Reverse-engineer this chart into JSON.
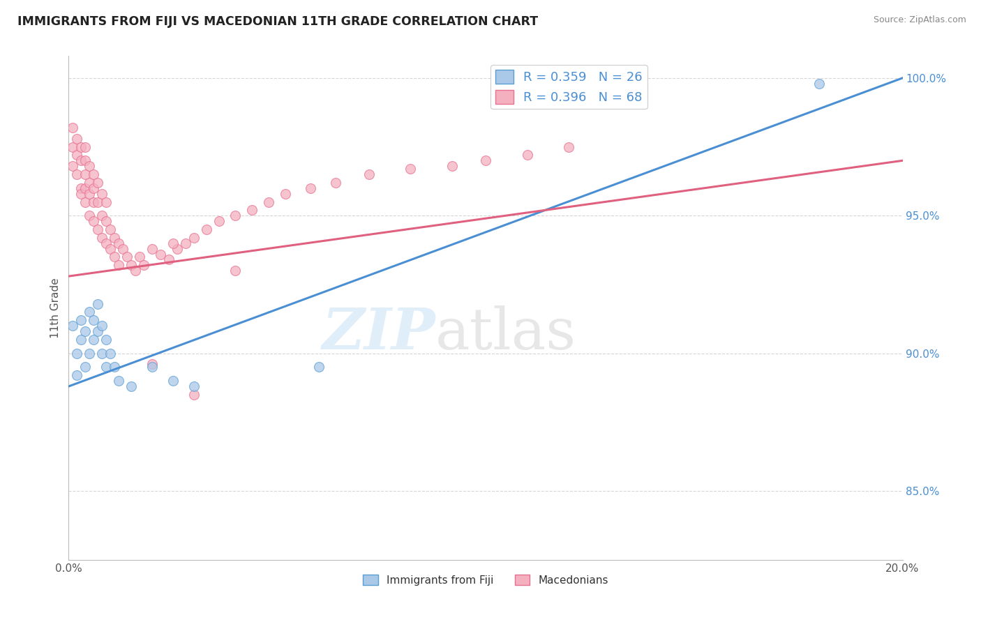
{
  "title": "IMMIGRANTS FROM FIJI VS MACEDONIAN 11TH GRADE CORRELATION CHART",
  "source": "Source: ZipAtlas.com",
  "ylabel": "11th Grade",
  "xlim": [
    0.0,
    0.2
  ],
  "ylim": [
    0.825,
    1.008
  ],
  "fiji_R": 0.359,
  "fiji_N": 26,
  "mac_R": 0.396,
  "mac_N": 68,
  "fiji_color": "#aac8e8",
  "mac_color": "#f4b0bf",
  "fiji_edge_color": "#5a9fd4",
  "mac_edge_color": "#e87090",
  "fiji_line_color": "#4a8fd4",
  "mac_line_color": "#e06080",
  "background_color": "#ffffff",
  "fiji_line_x": [
    0.0,
    0.2
  ],
  "fiji_line_y": [
    0.888,
    1.0
  ],
  "mac_line_x": [
    0.0,
    0.2
  ],
  "mac_line_y": [
    0.928,
    0.97
  ],
  "fiji_scatter_x": [
    0.001,
    0.002,
    0.002,
    0.003,
    0.003,
    0.004,
    0.004,
    0.005,
    0.005,
    0.006,
    0.006,
    0.007,
    0.007,
    0.008,
    0.008,
    0.009,
    0.009,
    0.01,
    0.011,
    0.012,
    0.015,
    0.02,
    0.025,
    0.03,
    0.06,
    0.18
  ],
  "fiji_scatter_y": [
    0.91,
    0.9,
    0.892,
    0.905,
    0.912,
    0.895,
    0.908,
    0.9,
    0.915,
    0.905,
    0.912,
    0.908,
    0.918,
    0.9,
    0.91,
    0.895,
    0.905,
    0.9,
    0.895,
    0.89,
    0.888,
    0.895,
    0.89,
    0.888,
    0.895,
    0.998
  ],
  "fiji_dot_size": 100,
  "mac_scatter_x": [
    0.001,
    0.001,
    0.001,
    0.002,
    0.002,
    0.002,
    0.003,
    0.003,
    0.003,
    0.003,
    0.004,
    0.004,
    0.004,
    0.004,
    0.004,
    0.005,
    0.005,
    0.005,
    0.005,
    0.006,
    0.006,
    0.006,
    0.006,
    0.007,
    0.007,
    0.007,
    0.008,
    0.008,
    0.008,
    0.009,
    0.009,
    0.009,
    0.01,
    0.01,
    0.011,
    0.011,
    0.012,
    0.012,
    0.013,
    0.014,
    0.015,
    0.016,
    0.017,
    0.018,
    0.02,
    0.022,
    0.024,
    0.026,
    0.028,
    0.03,
    0.033,
    0.036,
    0.04,
    0.044,
    0.048,
    0.052,
    0.058,
    0.064,
    0.072,
    0.082,
    0.092,
    0.1,
    0.11,
    0.12,
    0.02,
    0.025,
    0.03,
    0.04
  ],
  "mac_scatter_y": [
    0.975,
    0.968,
    0.982,
    0.972,
    0.965,
    0.978,
    0.96,
    0.97,
    0.958,
    0.975,
    0.955,
    0.965,
    0.96,
    0.97,
    0.975,
    0.95,
    0.962,
    0.958,
    0.968,
    0.948,
    0.955,
    0.96,
    0.965,
    0.945,
    0.955,
    0.962,
    0.942,
    0.95,
    0.958,
    0.94,
    0.948,
    0.955,
    0.938,
    0.945,
    0.935,
    0.942,
    0.932,
    0.94,
    0.938,
    0.935,
    0.932,
    0.93,
    0.935,
    0.932,
    0.938,
    0.936,
    0.934,
    0.938,
    0.94,
    0.942,
    0.945,
    0.948,
    0.95,
    0.952,
    0.955,
    0.958,
    0.96,
    0.962,
    0.965,
    0.967,
    0.968,
    0.97,
    0.972,
    0.975,
    0.896,
    0.94,
    0.885,
    0.93
  ],
  "mac_dot_size": 100,
  "ytick_vals": [
    0.85,
    0.9,
    0.95,
    1.0
  ],
  "ytick_labels": [
    "85.0%",
    "90.0%",
    "95.0%",
    "100.0%"
  ],
  "xtick_vals": [
    0.0,
    0.2
  ],
  "xtick_labels": [
    "0.0%",
    "20.0%"
  ],
  "legend1_label": "R = 0.359   N = 26",
  "legend2_label": "R = 0.396   N = 68",
  "bottom_legend1": "Immigrants from Fiji",
  "bottom_legend2": "Macedonians"
}
